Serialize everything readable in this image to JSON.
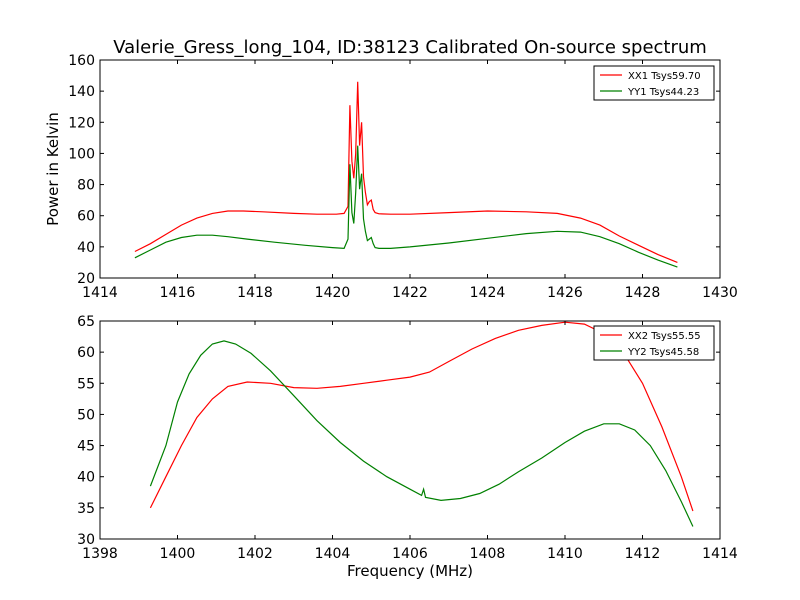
{
  "title": "Valerie_Gress_long_104, ID:38123 Calibrated On-source spectrum",
  "chart_data": [
    {
      "type": "line",
      "ylabel": "Power in Kelvin",
      "xlabel": "",
      "xlim": [
        1414,
        1430
      ],
      "ylim": [
        20,
        160
      ],
      "xticks": [
        "1414",
        "1416",
        "1418",
        "1420",
        "1422",
        "1424",
        "1426",
        "1428",
        "1430"
      ],
      "yticks": [
        "20",
        "40",
        "60",
        "80",
        "100",
        "120",
        "140",
        "160"
      ],
      "legend_position": "top-right",
      "series": [
        {
          "name": "XX1 Tsys59.70",
          "color": "#ff0000",
          "x": [
            1414.9,
            1415.3,
            1415.7,
            1416.1,
            1416.5,
            1416.9,
            1417.3,
            1417.7,
            1418.2,
            1419.0,
            1419.6,
            1420.1,
            1420.3,
            1420.4,
            1420.45,
            1420.5,
            1420.55,
            1420.6,
            1420.65,
            1420.7,
            1420.75,
            1420.8,
            1420.85,
            1420.9,
            1420.95,
            1421.0,
            1421.05,
            1421.1,
            1421.2,
            1421.5,
            1422.0,
            1423.0,
            1424.0,
            1425.0,
            1425.8,
            1426.4,
            1426.9,
            1427.4,
            1427.9,
            1428.4,
            1428.9
          ],
          "values": [
            37,
            42,
            48,
            54,
            58.5,
            61.5,
            63,
            63,
            62.5,
            61.5,
            61,
            61,
            61.5,
            66,
            131,
            95,
            84,
            100,
            146,
            105,
            120,
            85,
            75,
            67,
            69,
            70,
            64,
            62,
            61.2,
            61,
            61,
            62,
            63,
            62.5,
            61.5,
            58.5,
            54,
            47,
            41,
            35,
            30
          ]
        },
        {
          "name": "YY1 Tsys44.23",
          "color": "#008000",
          "x": [
            1414.9,
            1415.3,
            1415.7,
            1416.1,
            1416.5,
            1416.9,
            1417.3,
            1417.8,
            1418.5,
            1419.3,
            1420.0,
            1420.3,
            1420.4,
            1420.45,
            1420.5,
            1420.55,
            1420.6,
            1420.65,
            1420.7,
            1420.75,
            1420.8,
            1420.85,
            1420.9,
            1420.95,
            1421.0,
            1421.05,
            1421.1,
            1421.2,
            1421.5,
            1422.0,
            1423.0,
            1424.0,
            1425.0,
            1425.8,
            1426.4,
            1426.9,
            1427.4,
            1427.9,
            1428.4,
            1428.9
          ],
          "values": [
            33,
            38,
            43,
            46,
            47.5,
            47.5,
            46.5,
            45,
            43,
            41,
            39.5,
            39,
            45,
            93,
            62,
            55,
            75,
            105,
            77,
            87,
            58,
            50,
            44,
            45,
            46,
            42,
            39.5,
            39,
            39,
            40,
            42.5,
            45.5,
            48.5,
            50,
            49.5,
            46.5,
            42,
            36.5,
            31.5,
            27
          ]
        }
      ]
    },
    {
      "type": "line",
      "xlabel": "Frequency (MHz)",
      "ylabel": "",
      "xlim": [
        1398,
        1414
      ],
      "ylim": [
        30,
        65
      ],
      "xticks": [
        "1398",
        "1400",
        "1402",
        "1404",
        "1406",
        "1408",
        "1410",
        "1412",
        "1414"
      ],
      "yticks": [
        "30",
        "35",
        "40",
        "45",
        "50",
        "55",
        "60",
        "65"
      ],
      "legend_position": "top-right",
      "series": [
        {
          "name": "XX2 Tsys55.55",
          "color": "#ff0000",
          "x": [
            1399.3,
            1399.7,
            1400.1,
            1400.5,
            1400.9,
            1401.3,
            1401.8,
            1402.4,
            1403.0,
            1403.6,
            1404.2,
            1404.8,
            1405.4,
            1406.0,
            1406.5,
            1407.0,
            1407.6,
            1408.2,
            1408.8,
            1409.4,
            1410.0,
            1410.5,
            1411.0,
            1411.5,
            1412.0,
            1412.5,
            1413.0,
            1413.3
          ],
          "values": [
            35,
            40,
            45,
            49.5,
            52.5,
            54.5,
            55.2,
            55,
            54.3,
            54.2,
            54.5,
            55,
            55.5,
            56,
            56.8,
            58.5,
            60.5,
            62.2,
            63.5,
            64.3,
            64.8,
            64.5,
            63,
            60,
            55,
            48,
            40,
            34.5
          ]
        },
        {
          "name": "YY2 Tsys45.58",
          "color": "#008000",
          "x": [
            1399.3,
            1399.7,
            1400.0,
            1400.3,
            1400.6,
            1400.9,
            1401.2,
            1401.5,
            1401.9,
            1402.4,
            1403.0,
            1403.6,
            1404.2,
            1404.8,
            1405.4,
            1406.0,
            1406.3,
            1406.35,
            1406.4,
            1406.8,
            1407.3,
            1407.8,
            1408.3,
            1408.8,
            1409.4,
            1410.0,
            1410.5,
            1411.0,
            1411.4,
            1411.8,
            1412.2,
            1412.6,
            1413.0,
            1413.3
          ],
          "values": [
            38.5,
            45,
            52,
            56.5,
            59.5,
            61.3,
            61.8,
            61.3,
            59.8,
            57,
            53,
            49,
            45.5,
            42.5,
            40,
            38,
            37,
            38,
            36.7,
            36.2,
            36.5,
            37.3,
            38.8,
            40.8,
            43,
            45.5,
            47.3,
            48.5,
            48.5,
            47.5,
            45,
            41,
            36,
            32
          ]
        }
      ]
    }
  ]
}
